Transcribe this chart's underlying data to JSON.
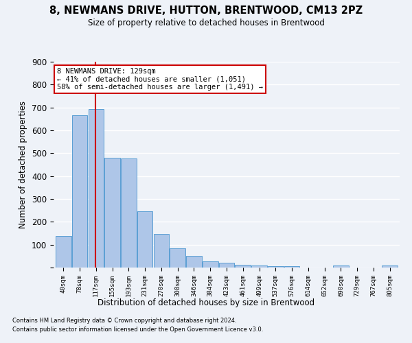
{
  "title1": "8, NEWMANS DRIVE, HUTTON, BRENTWOOD, CM13 2PZ",
  "title2": "Size of property relative to detached houses in Brentwood",
  "xlabel": "Distribution of detached houses by size in Brentwood",
  "ylabel": "Number of detached properties",
  "categories": [
    "40sqm",
    "78sqm",
    "117sqm",
    "155sqm",
    "193sqm",
    "231sqm",
    "270sqm",
    "308sqm",
    "346sqm",
    "384sqm",
    "423sqm",
    "461sqm",
    "499sqm",
    "537sqm",
    "576sqm",
    "614sqm",
    "652sqm",
    "690sqm",
    "729sqm",
    "767sqm",
    "805sqm"
  ],
  "values": [
    137,
    667,
    693,
    481,
    478,
    246,
    148,
    83,
    50,
    27,
    21,
    12,
    10,
    5,
    5,
    0,
    0,
    10,
    0,
    0,
    10
  ],
  "bar_color": "#aec6e8",
  "bar_edge_color": "#5a9fd4",
  "vline_color": "#cc0000",
  "vline_index": 2,
  "annotation_text": "8 NEWMANS DRIVE: 129sqm\n← 41% of detached houses are smaller (1,051)\n58% of semi-detached houses are larger (1,491) →",
  "annotation_box_color": "#ffffff",
  "annotation_box_edge": "#cc0000",
  "ylim": [
    0,
    900
  ],
  "yticks": [
    0,
    100,
    200,
    300,
    400,
    500,
    600,
    700,
    800,
    900
  ],
  "footer1": "Contains HM Land Registry data © Crown copyright and database right 2024.",
  "footer2": "Contains public sector information licensed under the Open Government Licence v3.0.",
  "bg_color": "#eef2f8",
  "grid_color": "#ffffff"
}
